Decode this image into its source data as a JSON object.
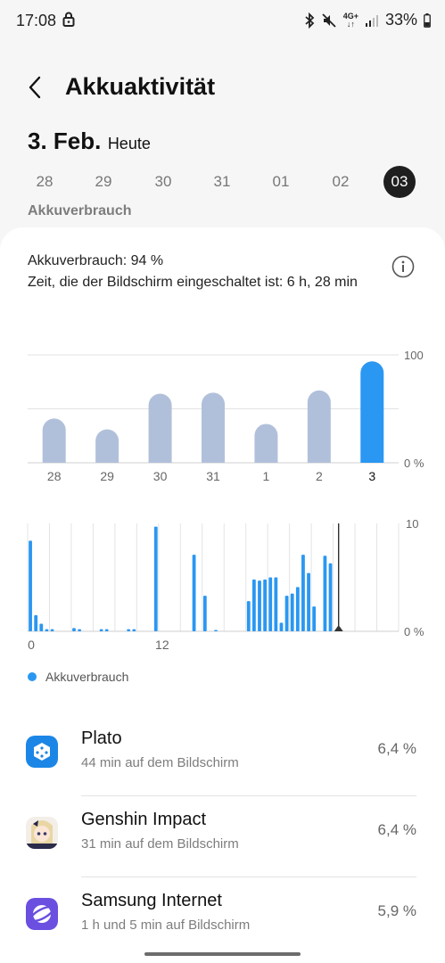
{
  "status_bar": {
    "time": "17:08",
    "battery": "33%",
    "network": "4G+"
  },
  "header": {
    "title": "Akkuaktivität"
  },
  "date": {
    "main": "3. Feb.",
    "sub": "Heute"
  },
  "days": [
    "28",
    "29",
    "30",
    "31",
    "01",
    "02",
    "03"
  ],
  "selected_day": "03",
  "section_label": "Akkuverbrauch",
  "summary": {
    "usage": "Akkuverbrauch: 94 %",
    "screen_time": "Zeit, die der Bildschirm eingeschaltet ist: 6 h, 28 min"
  },
  "chart_data": [
    {
      "type": "bar",
      "categories": [
        "28",
        "29",
        "30",
        "31",
        "1",
        "2",
        "3"
      ],
      "values": [
        41,
        31,
        64,
        65,
        36,
        67,
        94
      ],
      "highlight_index": 6,
      "ylim": [
        0,
        100
      ],
      "ytick_labels": [
        "100",
        "0 %"
      ],
      "colors": {
        "normal": "#b1c0da",
        "highlight": "#2a97f2"
      }
    },
    {
      "type": "bar",
      "x": [
        0,
        1,
        2,
        3,
        4,
        5,
        6,
        7,
        8,
        9,
        10,
        11,
        12,
        13,
        14,
        15,
        16,
        17,
        18,
        19,
        20,
        21,
        22,
        23,
        24,
        25,
        26,
        27,
        28,
        29,
        30,
        31,
        32,
        33,
        34,
        35,
        36,
        37,
        38,
        39,
        40,
        41,
        42,
        43,
        44,
        45,
        46,
        47,
        48,
        49,
        50,
        51,
        52,
        53,
        54,
        55,
        56,
        57,
        58,
        59,
        60,
        61,
        62,
        63,
        64,
        65,
        66,
        67
      ],
      "values": [
        8.4,
        1.5,
        0.7,
        0.2,
        0.2,
        0,
        0,
        0,
        0.3,
        0.2,
        0,
        0,
        0,
        0.2,
        0.2,
        0,
        0,
        0,
        0.2,
        0.2,
        0,
        0,
        0,
        9.7,
        0,
        0,
        0,
        0,
        0,
        0,
        7.1,
        0,
        3.3,
        0,
        0.1,
        0,
        0,
        0,
        0,
        0,
        2.8,
        4.8,
        4.7,
        4.8,
        5.0,
        5.0,
        0.8,
        3.3,
        3.5,
        4.1,
        7.1,
        5.4,
        2.3,
        0,
        7.0,
        6.3,
        0,
        0,
        0,
        0,
        0,
        0,
        0,
        0,
        0,
        0,
        0,
        0
      ],
      "now_index": 57,
      "x_tick_labels": [
        "0",
        "12"
      ],
      "ytick_labels": [
        "10",
        "0 %"
      ],
      "ylim": [
        0,
        10
      ]
    }
  ],
  "legend": {
    "label": "Akkuverbrauch"
  },
  "apps": [
    {
      "name": "Plato",
      "sub": "44 min auf dem Bildschirm",
      "pct": "6,4 %"
    },
    {
      "name": "Genshin Impact",
      "sub": "31 min auf dem Bildschirm",
      "pct": "6,4 %"
    },
    {
      "name": "Samsung Internet",
      "sub": "1 h und 5 min auf Bildschirm",
      "pct": "5,9 %"
    }
  ],
  "colors": {
    "accent": "#2a97f2",
    "muted_bar": "#b1c0da",
    "background": "#f6f6f6"
  }
}
